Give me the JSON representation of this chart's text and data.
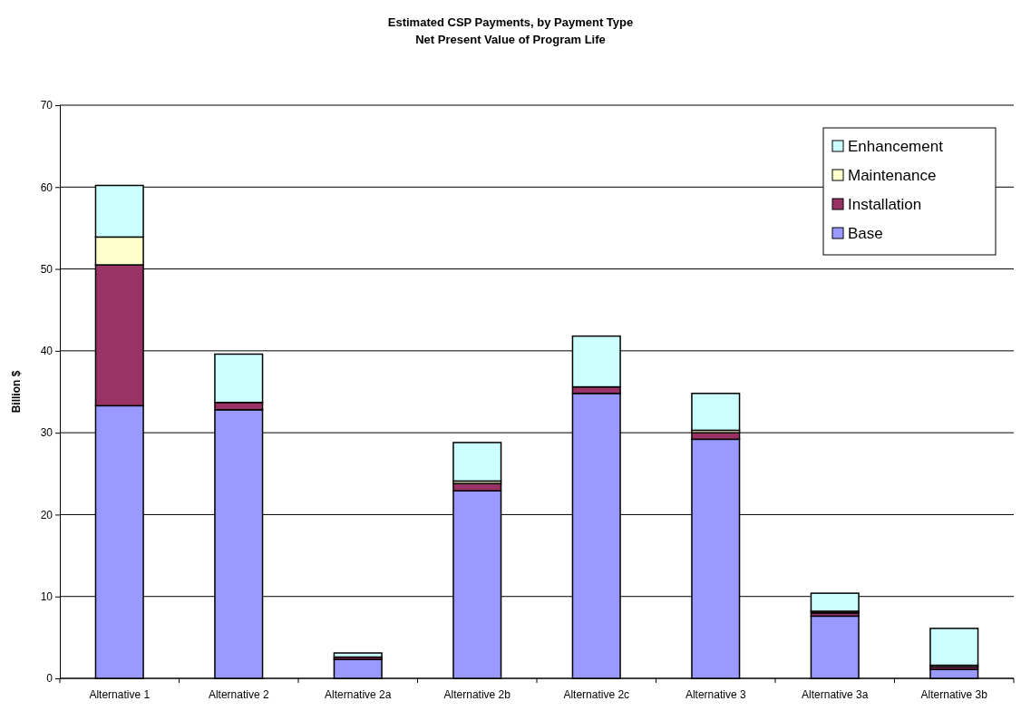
{
  "chart_data": {
    "type": "bar",
    "title": "Estimated CSP Payments, by Payment Type",
    "subtitle": "Net Present Value of Program Life",
    "ylabel": "Billion $",
    "categories": [
      "Alternative 1",
      "Alternative 2",
      "Alternative 2a",
      "Alternative 2b",
      "Alternative 2c",
      "Alternative 3",
      "Alternative 3a",
      "Alternative 3b"
    ],
    "stacked": true,
    "series": [
      {
        "name": "Base",
        "color": "#9999ff",
        "values": [
          33.3,
          32.8,
          2.3,
          22.9,
          34.8,
          29.2,
          7.6,
          1.1
        ]
      },
      {
        "name": "Installation",
        "color": "#993366",
        "values": [
          17.2,
          0.9,
          0.3,
          0.9,
          0.8,
          0.8,
          0.4,
          0.3
        ]
      },
      {
        "name": "Maintenance",
        "color": "#ffffcc",
        "values": [
          3.4,
          null,
          null,
          0.3,
          null,
          0.3,
          0.2,
          0.2
        ]
      },
      {
        "name": "Enhancement",
        "color": "#ccffff",
        "values": [
          6.3,
          5.9,
          0.5,
          4.7,
          6.2,
          4.5,
          2.2,
          4.5
        ]
      }
    ],
    "ylim": [
      0,
      70
    ],
    "yticks": [
      0,
      10,
      20,
      30,
      40,
      50,
      60,
      70
    ],
    "grid": "y",
    "legend": "top right"
  }
}
